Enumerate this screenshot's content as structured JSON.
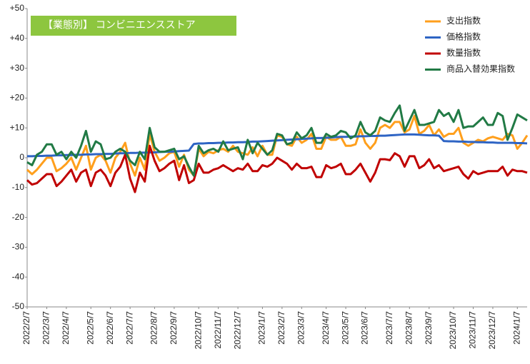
{
  "chart_data": {
    "type": "line",
    "title": "【業態別】 コンビニエンスストア",
    "categories": [
      "2022/2/7",
      null,
      null,
      null,
      "2022/3/7",
      null,
      null,
      null,
      "2022/4/7",
      null,
      null,
      null,
      null,
      "2022/5/7",
      null,
      null,
      null,
      "2022/6/7",
      null,
      null,
      null,
      "2022/7/7",
      null,
      null,
      null,
      null,
      "2022/8/7",
      null,
      null,
      null,
      "2022/9/7",
      null,
      null,
      null,
      null,
      "2022/10/7",
      null,
      null,
      null,
      "2022/11/7",
      null,
      null,
      null,
      "2022/12/7",
      null,
      null,
      null,
      null,
      "2023/1/7",
      null,
      null,
      null,
      "2023/2/7",
      null,
      null,
      null,
      "2023/3/7",
      null,
      null,
      null,
      null,
      "2023/4/7",
      null,
      null,
      null,
      "2023/5/7",
      null,
      null,
      null,
      "2023/6/7",
      null,
      null,
      null,
      null,
      "2023/7/7",
      null,
      null,
      null,
      "2023/8/7",
      null,
      null,
      null,
      "2023/9/7",
      null,
      null,
      null,
      null,
      "2023/10/7",
      null,
      null,
      null,
      "2023/11/7",
      null,
      null,
      null,
      "2023/12/7",
      null,
      null,
      null,
      null,
      "2024/1/7",
      null,
      null
    ],
    "series": [
      {
        "name": "支出指数",
        "color": "#ff9f1c",
        "values": [
          -4,
          -5.5,
          -4,
          -2,
          0,
          0,
          -4.5,
          -3.5,
          -2,
          0,
          -4,
          0,
          4,
          -4,
          0,
          1,
          -1,
          -5,
          0,
          2,
          5,
          -2,
          -6,
          0,
          -4,
          8,
          2,
          -1,
          0,
          1.5,
          2,
          -3,
          1,
          -4,
          -6,
          3,
          0.5,
          2,
          1.5,
          2.5,
          3,
          2,
          4,
          2,
          1.5,
          1,
          3.5,
          0.5,
          4,
          1,
          1,
          7.5,
          7,
          4.5,
          4,
          7,
          5,
          6,
          8,
          3,
          3,
          7,
          6,
          6,
          7,
          4,
          4,
          4.5,
          9.5,
          5,
          3,
          5,
          10,
          11,
          10,
          12,
          12,
          8.5,
          9.5,
          14,
          8,
          9,
          11,
          7.5,
          9.5,
          7,
          8,
          8,
          10,
          5,
          4,
          5,
          6,
          5.5,
          6.5,
          7,
          6.5,
          6,
          8,
          7.5,
          3,
          5,
          7.5
        ]
      },
      {
        "name": "価格指数",
        "color": "#2e64c4",
        "values": [
          0.5,
          0.5,
          0.6,
          0.6,
          0.7,
          0.7,
          0.8,
          0.8,
          0.9,
          0.9,
          1,
          1,
          1.1,
          1.1,
          1.2,
          1.2,
          1.3,
          1.3,
          1.4,
          1.5,
          1.5,
          1.6,
          1.6,
          1.7,
          1.7,
          1.8,
          1.8,
          1.9,
          2,
          2,
          2.1,
          2.2,
          2.3,
          2.4,
          4.6,
          4.8,
          4.8,
          4.9,
          4.9,
          5,
          5,
          5.1,
          5.1,
          5.2,
          5.2,
          5.3,
          5.4,
          5.4,
          5.5,
          5.6,
          5.7,
          5.8,
          5.9,
          6,
          6.1,
          6.2,
          6.3,
          6.4,
          6.5,
          6.6,
          6.6,
          6.7,
          6.8,
          6.9,
          7,
          7,
          7.1,
          7.1,
          7.2,
          7.2,
          7.3,
          7.3,
          7.4,
          7.4,
          7.5,
          7.6,
          7.7,
          7.8,
          7.8,
          7.8,
          7.7,
          7.6,
          7.5,
          7.5,
          7.4,
          5.6,
          5.5,
          5.5,
          5.4,
          5.4,
          5.3,
          5.3,
          5.2,
          5.2,
          5.1,
          5.1,
          5,
          5,
          5,
          5,
          4.9,
          4.9,
          4.8
        ]
      },
      {
        "name": "数量指数",
        "color": "#c00000",
        "values": [
          -7.5,
          -9,
          -8.5,
          -7,
          -5.5,
          -5.5,
          -9.5,
          -8,
          -6,
          -4,
          -8,
          -5,
          -4,
          -9.5,
          -5,
          -4,
          -6,
          -9.5,
          -5,
          -3,
          1,
          -7,
          -11.5,
          -5,
          -8,
          4,
          -1,
          -4.5,
          -3.5,
          -2,
          -1,
          -7.5,
          -2.5,
          -8.5,
          -7.5,
          -2,
          -5,
          -5,
          -4,
          -3.5,
          -2.5,
          -3.5,
          -4.5,
          -3.5,
          -4,
          -2,
          -4.5,
          -4.5,
          -2.5,
          -3,
          -2,
          0,
          -1,
          -2,
          -4,
          -2,
          -3.5,
          -3.5,
          -3,
          -6.5,
          -6.5,
          -2.5,
          -3.5,
          -3,
          -2,
          -5.5,
          -5.5,
          -4,
          -2,
          -5,
          -8,
          -5,
          -0.5,
          -0.5,
          -0.8,
          1.5,
          0.5,
          -3,
          0.5,
          0.5,
          -3.5,
          -2.5,
          -0.5,
          -3.5,
          -2.5,
          -4.5,
          -4,
          -3.5,
          -3,
          -5.5,
          -7,
          -4.5,
          -5.5,
          -5,
          -4.5,
          -4.5,
          -4.5,
          -3,
          -6,
          -4,
          -4.5,
          -4.5,
          -5
        ]
      },
      {
        "name": "商品入替効果指数",
        "color": "#217a45",
        "values": [
          -1.5,
          -2.5,
          1,
          2,
          4.5,
          4.5,
          1,
          2,
          -0.5,
          2,
          0,
          4,
          9,
          2,
          5.5,
          4.5,
          -0.5,
          0,
          2,
          3,
          2,
          -1,
          -2.5,
          2,
          -0.5,
          10,
          3.5,
          2,
          2,
          2.5,
          3,
          -0.5,
          0.5,
          -3,
          -6,
          4,
          1.5,
          2.5,
          3,
          2,
          5.5,
          2.5,
          3,
          3.5,
          -0.5,
          6,
          1.5,
          5,
          3,
          1,
          2.5,
          8,
          7.5,
          4.5,
          5,
          8.5,
          6.5,
          7.5,
          10,
          5,
          5,
          8,
          7,
          7.5,
          9,
          8.5,
          6.5,
          7.5,
          12,
          8.5,
          7.5,
          9,
          13.5,
          12.5,
          12,
          15,
          17.5,
          9,
          12.5,
          16,
          11,
          11,
          11.5,
          12,
          16,
          14,
          15,
          12,
          16,
          10,
          10.5,
          10.5,
          12,
          13.5,
          11,
          11,
          15,
          14,
          6,
          10,
          14.5,
          13.5,
          12.5
        ]
      }
    ],
    "ylim": [
      -50,
      50
    ],
    "yticks": [
      {
        "value": 50,
        "label": "+50"
      },
      {
        "value": 40,
        "label": "+40"
      },
      {
        "value": 30,
        "label": "+30"
      },
      {
        "value": 20,
        "label": "+20"
      },
      {
        "value": 10,
        "label": "+10"
      },
      0,
      -10,
      -20,
      -30,
      -40,
      -50
    ],
    "grid": false,
    "legend": "top-right"
  }
}
